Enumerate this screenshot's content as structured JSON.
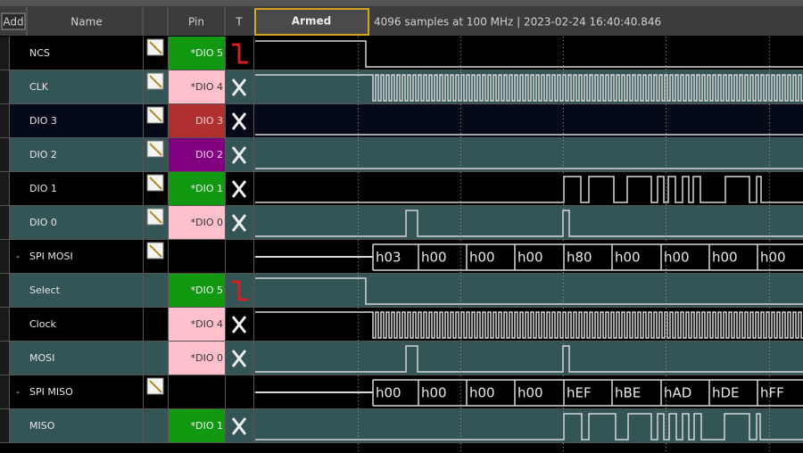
{
  "toolbar": {
    "add_button": "Add",
    "name_header": "Name",
    "pin_header": "Pin",
    "trigger_header": "T",
    "status": "Armed",
    "info": "4096 samples at 100 MHz | 2023-02-24 16:40:40.846"
  },
  "rows": [
    {
      "name": "NCS",
      "pin": "*DIO 5"
    },
    {
      "name": "CLK",
      "pin": "*DIO 4"
    },
    {
      "name": "DIO 3",
      "pin": "DIO 3"
    },
    {
      "name": "DIO 2",
      "pin": "DIO 2"
    },
    {
      "name": "DIO 1",
      "pin": "*DIO 1"
    },
    {
      "name": "DIO 0",
      "pin": "*DIO 0"
    },
    {
      "name": "SPI MOSI",
      "expander": "-",
      "bytes": [
        "h03",
        "h00",
        "h00",
        "h00",
        "h80",
        "h00",
        "h00",
        "h00",
        "h00"
      ]
    },
    {
      "name": "Select",
      "pin": "*DIO 5"
    },
    {
      "name": "Clock",
      "pin": "*DIO 4"
    },
    {
      "name": "MOSI",
      "pin": "*DIO 0"
    },
    {
      "name": "SPI MISO",
      "expander": "-",
      "bytes": [
        "h00",
        "h00",
        "h00",
        "h00",
        "hEF",
        "hBE",
        "hAD",
        "hDE",
        "hFF"
      ]
    },
    {
      "name": "MISO",
      "pin": "*DIO 1"
    }
  ]
}
